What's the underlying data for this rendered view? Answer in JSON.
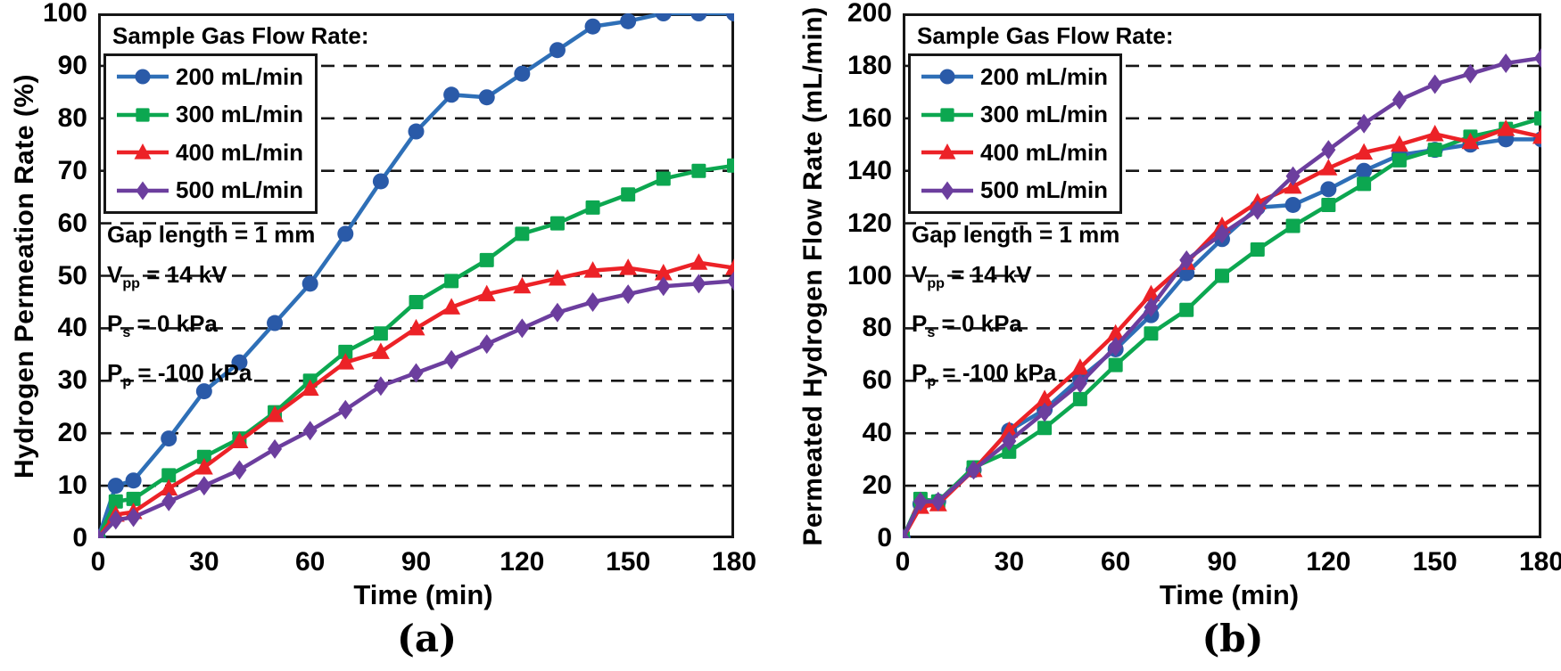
{
  "figure": {
    "background": "#ffffff",
    "captions": {
      "a": "(a)",
      "b": "(b)"
    }
  },
  "legend": {
    "title": "Sample Gas Flow Rate:",
    "position": "top-left-inside",
    "items": [
      {
        "label": "200 mL/min",
        "marker": "circle",
        "color": "#2e6fb7",
        "marker_color": "#2a5aa8"
      },
      {
        "label": "300 mL/min",
        "marker": "square",
        "color": "#0ca750",
        "marker_color": "#0ca750"
      },
      {
        "label": "400 mL/min",
        "marker": "triangle",
        "color": "#ec2227",
        "marker_color": "#ec2227"
      },
      {
        "label": "500 mL/min",
        "marker": "diamond",
        "color": "#6c3e9e",
        "marker_color": "#6c3e9e"
      }
    ]
  },
  "annotations": {
    "lines": [
      {
        "parts": [
          [
            "t",
            "Gap length = 1 mm"
          ]
        ]
      },
      {
        "parts": [
          [
            "t",
            "V"
          ],
          [
            "sub",
            "pp"
          ],
          [
            "t",
            " = 14 kV"
          ]
        ]
      },
      {
        "parts": [
          [
            "t",
            "P"
          ],
          [
            "sub",
            "s"
          ],
          [
            "t",
            " = 0 kPa"
          ]
        ]
      },
      {
        "parts": [
          [
            "t",
            "P"
          ],
          [
            "sub",
            "p"
          ],
          [
            "t",
            " = -100 kPa"
          ]
        ]
      }
    ]
  },
  "chart_data": [
    {
      "id": "a",
      "type": "line",
      "xlabel": "Time (min)",
      "ylabel": "Hydrogen Permeation Rate (%)",
      "xlim": [
        0,
        180
      ],
      "ylim": [
        0,
        100
      ],
      "xticks": [
        0,
        30,
        60,
        90,
        120,
        150,
        180
      ],
      "yticks": [
        0,
        10,
        20,
        30,
        40,
        50,
        60,
        70,
        80,
        90,
        100
      ],
      "grid": "horizontal-dashed",
      "x": [
        0,
        5,
        10,
        20,
        30,
        40,
        50,
        60,
        70,
        80,
        90,
        100,
        110,
        120,
        130,
        140,
        150,
        160,
        170,
        180
      ],
      "series": [
        {
          "name": "200 mL/min",
          "values": [
            0,
            10,
            11,
            19,
            28,
            33.5,
            41,
            48.5,
            58,
            68,
            77.5,
            84.5,
            84,
            88.5,
            93,
            97.5,
            98.5,
            100,
            100,
            100
          ]
        },
        {
          "name": "300 mL/min",
          "values": [
            0,
            7,
            7.5,
            12,
            15.5,
            19,
            24,
            30,
            35.5,
            39,
            45,
            49,
            53,
            58,
            60,
            63,
            65.5,
            68.5,
            70,
            71
          ]
        },
        {
          "name": "400 mL/min",
          "values": [
            0,
            4.5,
            5,
            9.5,
            13.5,
            18.5,
            23.5,
            28.5,
            33.5,
            35.5,
            40,
            44,
            46.5,
            48,
            49.5,
            51,
            51.5,
            50.5,
            52.5,
            51.5
          ]
        },
        {
          "name": "500 mL/min",
          "values": [
            0,
            3.5,
            4,
            7,
            10,
            13,
            17,
            20.5,
            24.5,
            29,
            31.5,
            34,
            37,
            40,
            43,
            45,
            46.5,
            48,
            48.5,
            49
          ]
        }
      ]
    },
    {
      "id": "b",
      "type": "line",
      "xlabel": "Time (min)",
      "ylabel": "Permeated Hydrogen Flow Rate (mL/min)",
      "xlim": [
        0,
        180
      ],
      "ylim": [
        0,
        200
      ],
      "xticks": [
        0,
        30,
        60,
        90,
        120,
        150,
        180
      ],
      "yticks": [
        0,
        20,
        40,
        60,
        80,
        100,
        120,
        140,
        160,
        180,
        200
      ],
      "grid": "horizontal-dashed",
      "x": [
        0,
        5,
        10,
        20,
        30,
        40,
        50,
        60,
        70,
        80,
        90,
        100,
        110,
        120,
        130,
        140,
        150,
        160,
        170,
        180
      ],
      "series": [
        {
          "name": "200 mL/min",
          "values": [
            0,
            13,
            14,
            26,
            41,
            49,
            61,
            72,
            85,
            101,
            114,
            126,
            127,
            133,
            140,
            146,
            148,
            150,
            152,
            152
          ]
        },
        {
          "name": "300 mL/min",
          "values": [
            0,
            15,
            14,
            27,
            33,
            42,
            53,
            66,
            78,
            87,
            100,
            110,
            119,
            127,
            135,
            144,
            148,
            153,
            156,
            160
          ]
        },
        {
          "name": "400 mL/min",
          "values": [
            0,
            12,
            13,
            26,
            41,
            53,
            65,
            78,
            93,
            105,
            119,
            128,
            134,
            141,
            147,
            150,
            154,
            151,
            156,
            153
          ]
        },
        {
          "name": "500 mL/min",
          "values": [
            0,
            14,
            14,
            26,
            37,
            48,
            59,
            73,
            88,
            106,
            116,
            125,
            138,
            148,
            158,
            167,
            173,
            177,
            181,
            183
          ]
        }
      ]
    }
  ]
}
